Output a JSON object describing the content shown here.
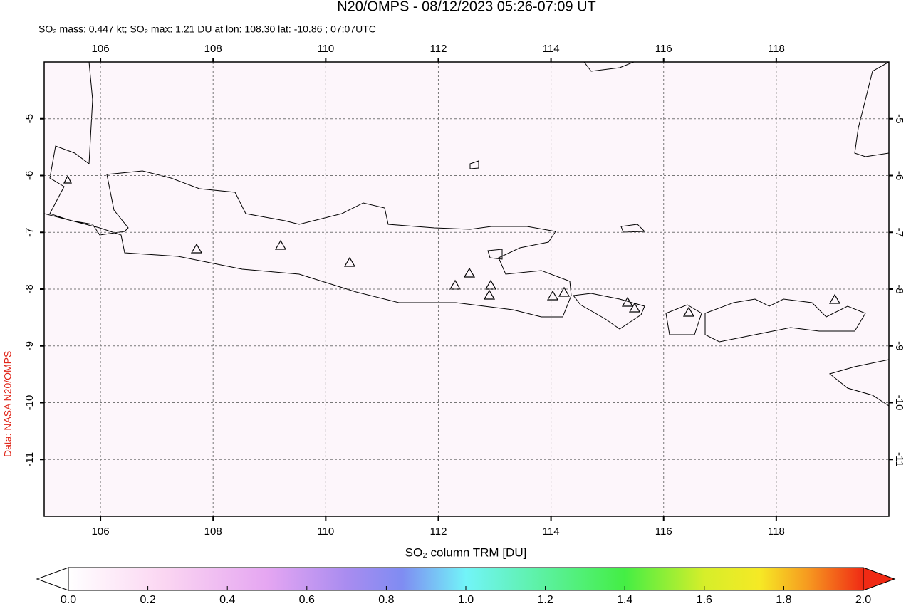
{
  "title": "N20/OMPS - 08/12/2023 05:26-07:09 UT",
  "subtitle": "SO₂ mass: 0.447 kt; SO₂ max: 1.21 DU at lon: 108.30 lat: -10.86 ; 07:07UTC",
  "credit": "Data: NASA N20/OMPS",
  "map": {
    "xlim": [
      105,
      120
    ],
    "ylim": [
      -12,
      -4
    ],
    "xticks": [
      106,
      108,
      110,
      112,
      114,
      116,
      118
    ],
    "yticks": [
      -5,
      -6,
      -7,
      -8,
      -9,
      -10,
      -11
    ],
    "grid": true
  },
  "colorbar": {
    "label": "SO₂ column TRM [DU]",
    "lim": [
      0,
      2
    ],
    "ticks": [
      {
        "value": 0,
        "label": "0.0"
      },
      {
        "value": 0.2,
        "label": "0.2"
      },
      {
        "value": 0.4,
        "label": "0.4"
      },
      {
        "value": 0.6,
        "label": "0.6"
      },
      {
        "value": 0.8,
        "label": "0.8"
      },
      {
        "value": 1,
        "label": "1.0"
      },
      {
        "value": 1.2,
        "label": "1.2"
      },
      {
        "value": 1.4,
        "label": "1.4"
      },
      {
        "value": 1.6,
        "label": "1.6"
      },
      {
        "value": 1.8,
        "label": "1.8"
      },
      {
        "value": 2,
        "label": "2.0"
      }
    ]
  }
}
